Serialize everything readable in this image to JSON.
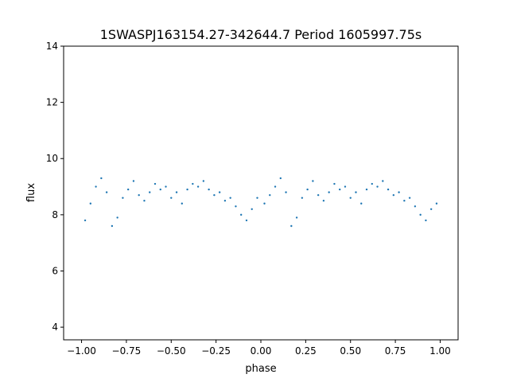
{
  "chart_data": {
    "type": "scatter",
    "title": "1SWASPJ163154.27-342644.7 Period 1605997.75s",
    "xlabel": "phase",
    "ylabel": "flux",
    "xlim": [
      -1.1,
      1.1
    ],
    "ylim": [
      3.55,
      14.0
    ],
    "xticks": [
      -1.0,
      -0.75,
      -0.5,
      -0.25,
      0.0,
      0.25,
      0.5,
      0.75,
      1.0
    ],
    "xtick_labels": [
      "−1.00",
      "−0.75",
      "−0.50",
      "−0.25",
      "0.00",
      "0.25",
      "0.50",
      "0.75",
      "1.00"
    ],
    "yticks": [
      4,
      6,
      8,
      10,
      12,
      14
    ],
    "ytick_labels": [
      "4",
      "6",
      "8",
      "10",
      "12",
      "14"
    ],
    "grid": false,
    "legend": "none",
    "marker_color": "#1f77b4",
    "series": [
      {
        "x": [
          -0.98,
          -0.95,
          -0.92,
          -0.89,
          -0.86,
          -0.83,
          -0.8,
          -0.77,
          -0.74,
          -0.71,
          -0.68,
          -0.65,
          -0.62,
          -0.59,
          -0.56,
          -0.53,
          -0.5,
          -0.47,
          -0.44,
          -0.41,
          -0.38,
          -0.35,
          -0.32,
          -0.29,
          -0.26,
          -0.23,
          -0.2,
          -0.17,
          -0.14,
          -0.11,
          -0.08,
          -0.05,
          -0.02,
          0.02,
          0.05,
          0.08,
          0.11,
          0.14,
          0.17,
          0.2,
          0.23,
          0.26,
          0.29,
          0.32,
          0.35,
          0.38,
          0.41,
          0.44,
          0.47,
          0.5,
          0.53,
          0.56,
          0.59,
          0.62,
          0.65,
          0.68,
          0.71,
          0.74,
          0.77,
          0.8,
          0.83,
          0.86,
          0.89,
          0.92,
          0.95,
          0.98
        ],
        "y": [
          7.8,
          8.4,
          9.0,
          9.3,
          8.8,
          7.6,
          7.9,
          8.6,
          8.9,
          9.2,
          8.7,
          8.5,
          8.8,
          9.1,
          8.9,
          9.0,
          8.6,
          8.8,
          8.4,
          8.9,
          9.1,
          9.0,
          9.2,
          8.9,
          8.7,
          8.8,
          8.5,
          8.6,
          8.3,
          8.0,
          7.8,
          8.2,
          8.6,
          8.4,
          8.7,
          9.0,
          9.3,
          8.8,
          7.6,
          7.9,
          8.6,
          8.9,
          9.2,
          8.7,
          8.5,
          8.8,
          9.1,
          8.9,
          9.0,
          8.6,
          8.8,
          8.4,
          8.9,
          9.1,
          9.0,
          9.2,
          8.9,
          8.7,
          8.8,
          8.5,
          8.6,
          8.3,
          8.0,
          7.8,
          8.2,
          8.4
        ]
      }
    ]
  }
}
